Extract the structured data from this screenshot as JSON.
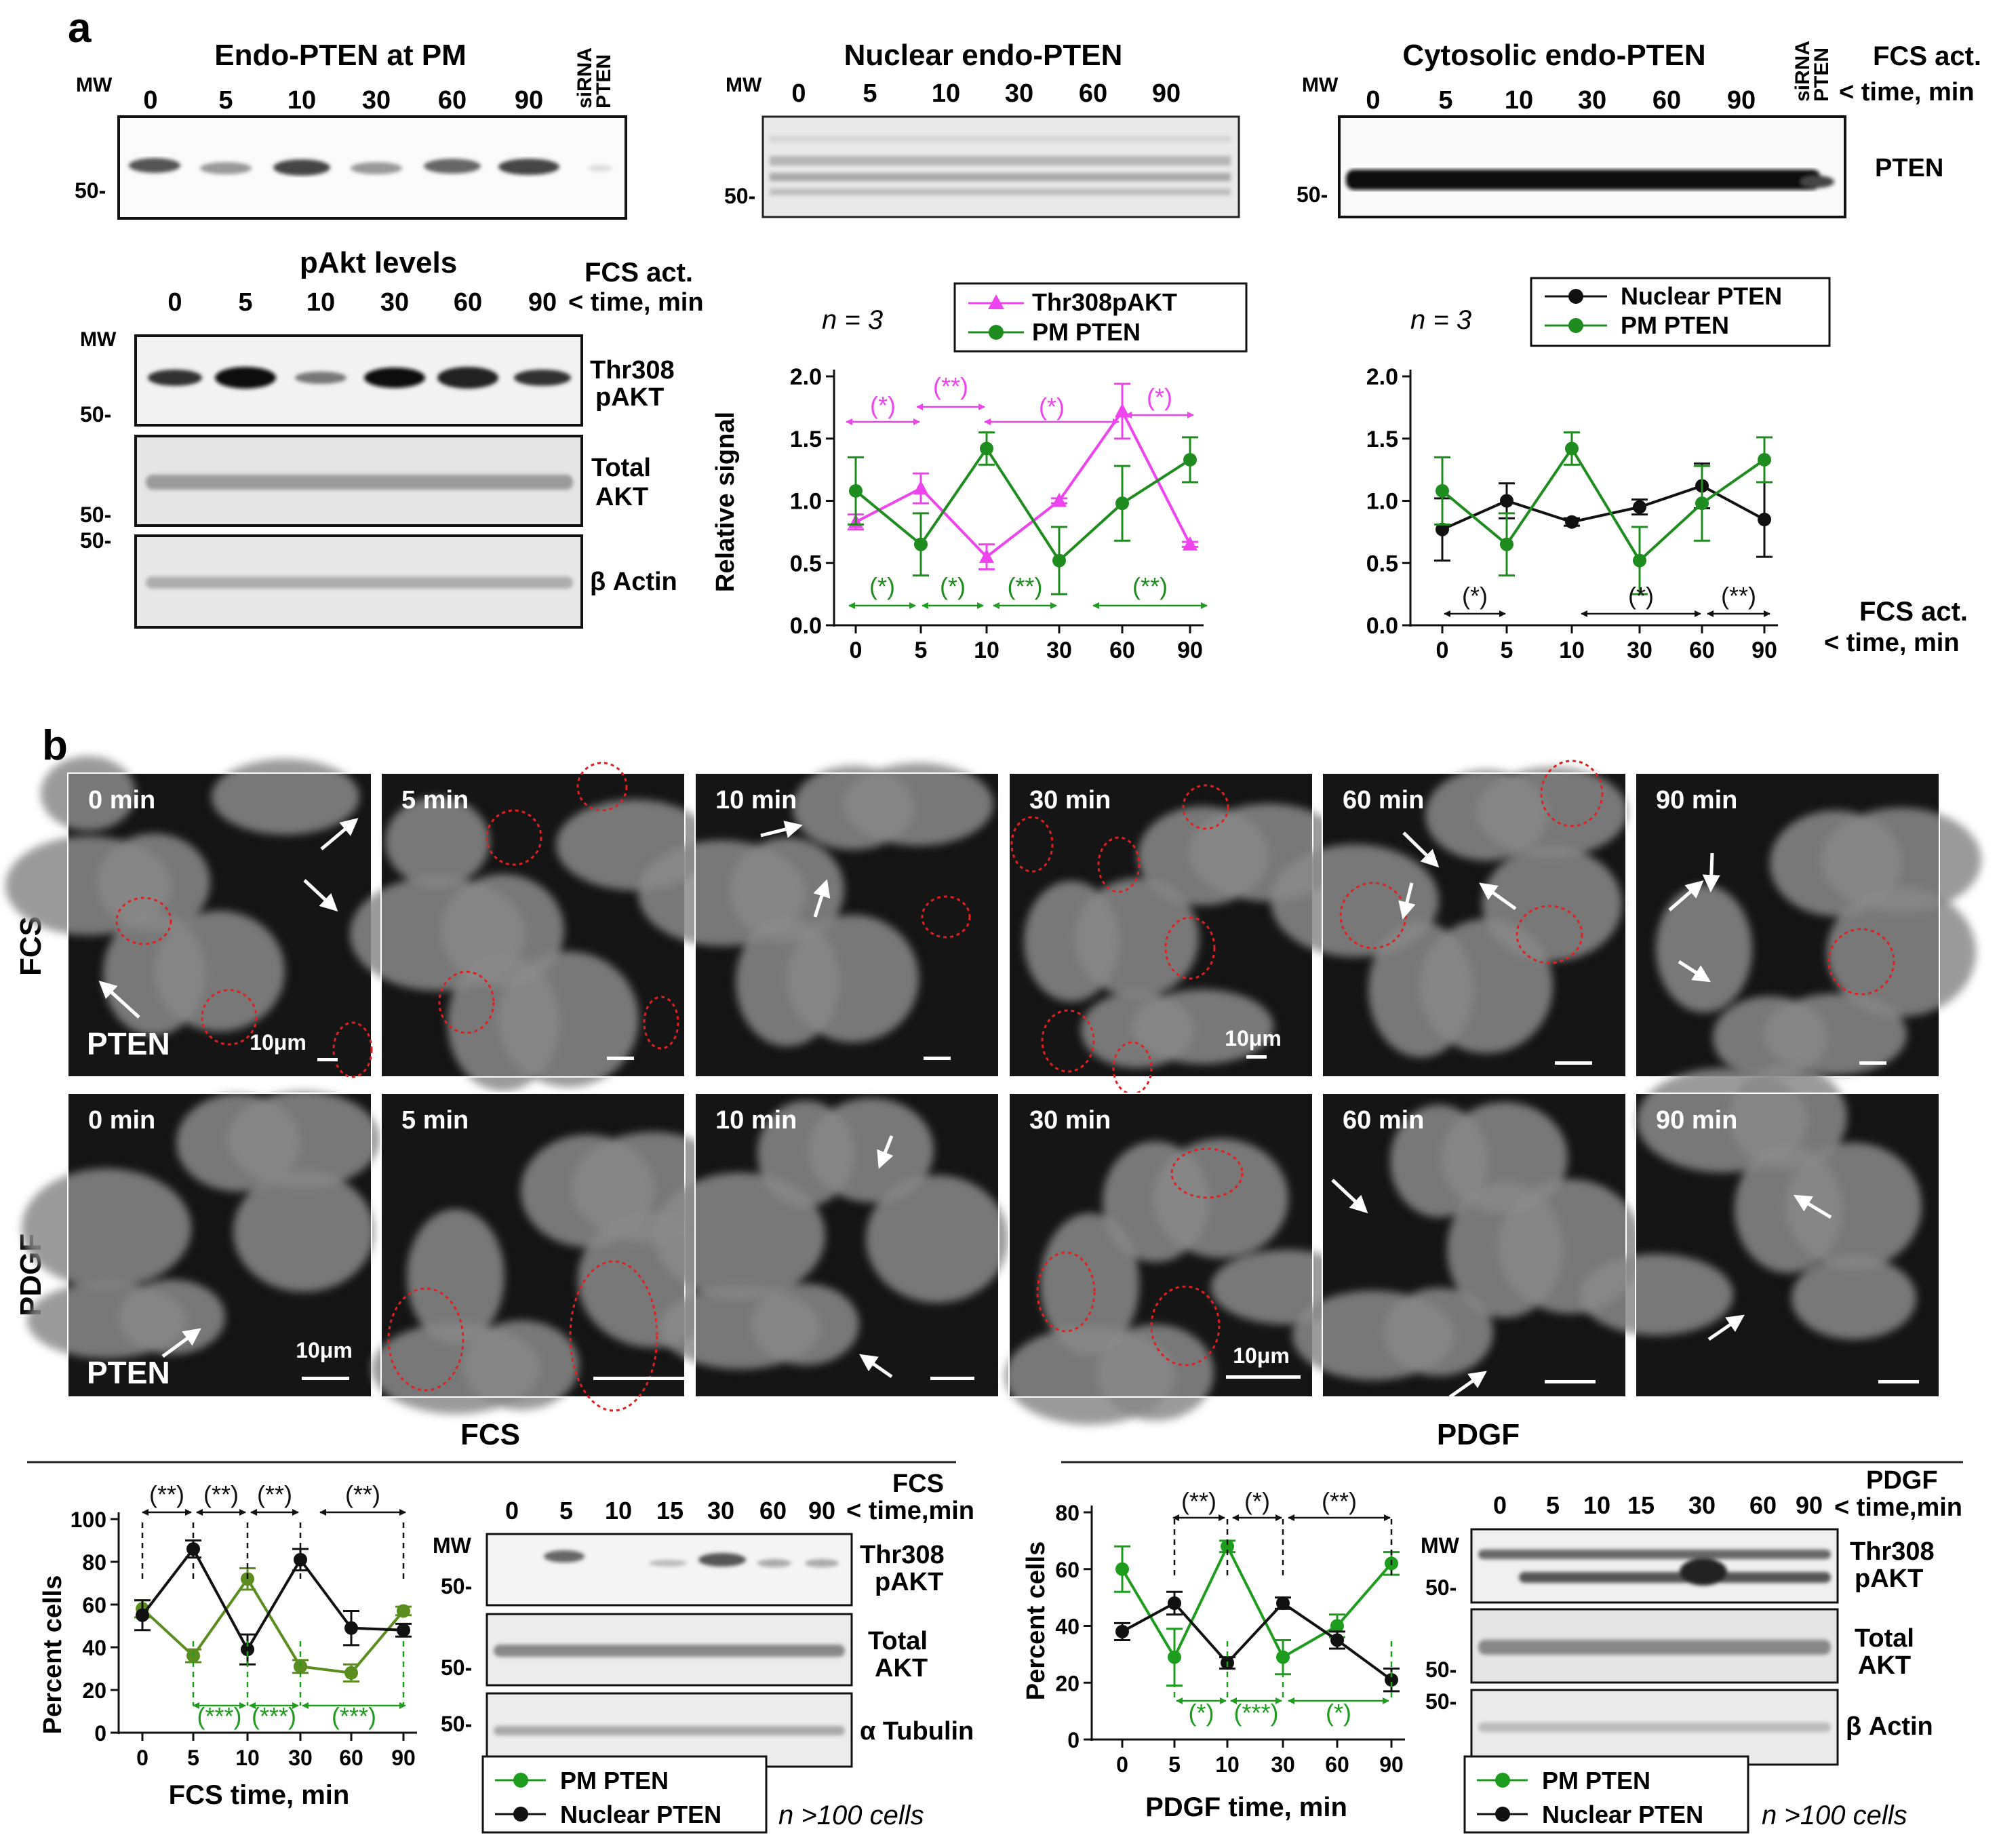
{
  "panel_a": {
    "letter": "a",
    "mw": "MW",
    "fcs_act": "FCS act.",
    "time_min": "< time, min",
    "blot_pm": {
      "title": "Endo-PTEN at PM",
      "lanes": [
        "0",
        "5",
        "10",
        "30",
        "60",
        "90"
      ],
      "extra_lane_1": "siRNA",
      "extra_lane_2": "PTEN",
      "marker": "50-"
    },
    "blot_nuc": {
      "title": "Nuclear endo-PTEN",
      "lanes": [
        "0",
        "5",
        "10",
        "30",
        "60",
        "90"
      ],
      "marker": "50-"
    },
    "blot_cyto": {
      "title": "Cytosolic endo-PTEN",
      "lanes": [
        "0",
        "5",
        "10",
        "30",
        "60",
        "90"
      ],
      "extra_lane_1": "siRNA",
      "extra_lane_2": "PTEN",
      "marker": "50-",
      "band_label": "PTEN"
    },
    "pakt": {
      "title": "pAkt levels",
      "lanes": [
        "0",
        "5",
        "10",
        "30",
        "60",
        "90"
      ],
      "row1_l1": "Thr308",
      "row1_l2": "pAKT",
      "row2_l1": "Total",
      "row2_l2": "AKT",
      "row3": "β Actin",
      "m1": "50-",
      "m2": "50-",
      "m3": "50-"
    },
    "n_label": "n = 3"
  },
  "panel_b": {
    "letter": "b",
    "row_fcs": "FCS",
    "row_pdgf": "PDGF",
    "times": [
      "0 min",
      "5 min",
      "10 min",
      "30 min",
      "60 min",
      "90 min"
    ],
    "pten": "PTEN",
    "scale": "10μm",
    "fcs_header": "FCS",
    "pdgf_header": "PDGF",
    "fcs_blot": {
      "lanes": [
        "0",
        "5",
        "10",
        "15",
        "30",
        "60",
        "90"
      ],
      "hdr1": "FCS",
      "hdr2": "< time,min",
      "mw": "MW",
      "row1_l1": "Thr308",
      "row1_l2": "pAKT",
      "row2_l1": "Total",
      "row2_l2": "AKT",
      "row3": "α Tubulin",
      "m1": "50-",
      "m2": "50-",
      "m3": "50-"
    },
    "pdgf_blot": {
      "lanes": [
        "0",
        "5",
        "10",
        "15",
        "30",
        "60",
        "90"
      ],
      "hdr1": "PDGF",
      "hdr2": "< time,min",
      "mw": "MW",
      "row1_l1": "Thr308",
      "row1_l2": "pAKT",
      "row2_l1": "Total",
      "row2_l2": "AKT",
      "row3": "β Actin",
      "m1": "50-",
      "m2": "50-",
      "m3": "50-"
    },
    "legend_pm": "PM  PTEN",
    "legend_nuc": "Nuclear PTEN",
    "n_cells": "n >100 cells"
  },
  "chart_data": [
    {
      "id": "relative_signal_pakt_pm",
      "type": "line",
      "ylabel": "Relative signal",
      "categories": [
        "0",
        "5",
        "10",
        "30",
        "60",
        "90"
      ],
      "ylim": [
        0,
        2.0
      ],
      "yticks": [
        "0.0",
        "0.5",
        "1.0",
        "1.5",
        "2.0"
      ],
      "series": [
        {
          "name": "Thr308pAKT",
          "color": "#ee44ee",
          "marker": "triangle",
          "values": [
            0.83,
            1.1,
            0.55,
            1.0,
            1.72,
            0.65
          ],
          "errors": [
            0.06,
            0.12,
            0.1,
            0.02,
            0.22,
            0.02
          ]
        },
        {
          "name": "PM PTEN",
          "color": "#1e8c1e",
          "marker": "circle",
          "values": [
            1.08,
            0.65,
            1.42,
            0.52,
            0.98,
            1.33
          ],
          "errors": [
            0.27,
            0.25,
            0.13,
            0.27,
            0.3,
            0.18
          ]
        }
      ],
      "top_sig": {
        "color": "#ee44ee",
        "labels": [
          "(*)",
          "(**)",
          "(*)",
          "(*)"
        ]
      },
      "bottom_sig": {
        "color": "#1e8c1e",
        "labels": [
          "(*)",
          "(*)",
          "(**)",
          "(**)"
        ]
      }
    },
    {
      "id": "nuclear_vs_pm_pten",
      "type": "line",
      "categories": [
        "0",
        "5",
        "10",
        "30",
        "60",
        "90"
      ],
      "ylim": [
        0,
        2.0
      ],
      "yticks": [
        "0.0",
        "0.5",
        "1.0",
        "1.5",
        "2.0"
      ],
      "xlabel_1": "FCS act.",
      "xlabel_2": "< time, min",
      "series": [
        {
          "name": "Nuclear PTEN",
          "color": "#111111",
          "marker": "circle",
          "values": [
            0.77,
            1.0,
            0.83,
            0.95,
            1.12,
            0.85
          ],
          "errors": [
            0.25,
            0.14,
            0.03,
            0.06,
            0.18,
            0.3
          ]
        },
        {
          "name": "PM PTEN",
          "color": "#1e8c1e",
          "marker": "circle",
          "values": [
            1.08,
            0.65,
            1.42,
            0.52,
            0.98,
            1.33
          ],
          "errors": [
            0.27,
            0.25,
            0.13,
            0.27,
            0.3,
            0.18
          ]
        }
      ],
      "bottom_sig": {
        "color": "#111111",
        "labels": [
          "(*)",
          "(*)",
          "(**)"
        ]
      }
    },
    {
      "id": "fcs_percent_cells",
      "type": "line",
      "ylabel": "Percent cells",
      "xlabel": "FCS time, min",
      "categories": [
        "0",
        "5",
        "10",
        "30",
        "60",
        "90"
      ],
      "ylim": [
        0,
        100
      ],
      "yticks": [
        "0",
        "20",
        "40",
        "60",
        "80",
        "100"
      ],
      "series": [
        {
          "name": "PM  PTEN",
          "color": "#5a8c1e",
          "marker": "circle",
          "values": [
            58,
            36,
            72,
            31,
            28,
            57
          ],
          "errors": [
            4,
            3,
            5,
            3,
            4,
            2
          ]
        },
        {
          "name": "Nuclear PTEN",
          "color": "#111111",
          "marker": "circle",
          "values": [
            55,
            86,
            39,
            81,
            49,
            48
          ],
          "errors": [
            7,
            4,
            7,
            5,
            8,
            3
          ]
        }
      ],
      "top_sig": {
        "color": "#111111",
        "labels": [
          "(**)",
          "(**)",
          "(**)",
          "(**)"
        ]
      },
      "bottom_sig": {
        "color": "#1e9c1e",
        "labels": [
          "(***)",
          "(***)",
          "(***)"
        ]
      }
    },
    {
      "id": "pdgf_percent_cells",
      "type": "line",
      "ylabel": "Percent cells",
      "xlabel": "PDGF time, min",
      "categories": [
        "0",
        "5",
        "10",
        "30",
        "60",
        "90"
      ],
      "ylim": [
        0,
        80
      ],
      "yticks": [
        "0",
        "20",
        "40",
        "60",
        "80"
      ],
      "series": [
        {
          "name": "PM  PTEN",
          "color": "#1e9c1e",
          "marker": "circle",
          "values": [
            60,
            29,
            68,
            29,
            40,
            62
          ],
          "errors": [
            8,
            10,
            2,
            6,
            4,
            4
          ]
        },
        {
          "name": "Nuclear PTEN",
          "color": "#111111",
          "marker": "circle",
          "values": [
            38,
            48,
            27,
            48,
            35,
            21
          ],
          "errors": [
            3,
            4,
            2,
            2,
            3,
            4
          ]
        }
      ],
      "top_sig": {
        "color": "#111111",
        "labels": [
          "(**)",
          "(*)",
          "(**)"
        ]
      },
      "bottom_sig": {
        "color": "#1e9c1e",
        "labels": [
          "(*)",
          "(***)",
          "(*)"
        ]
      }
    }
  ]
}
